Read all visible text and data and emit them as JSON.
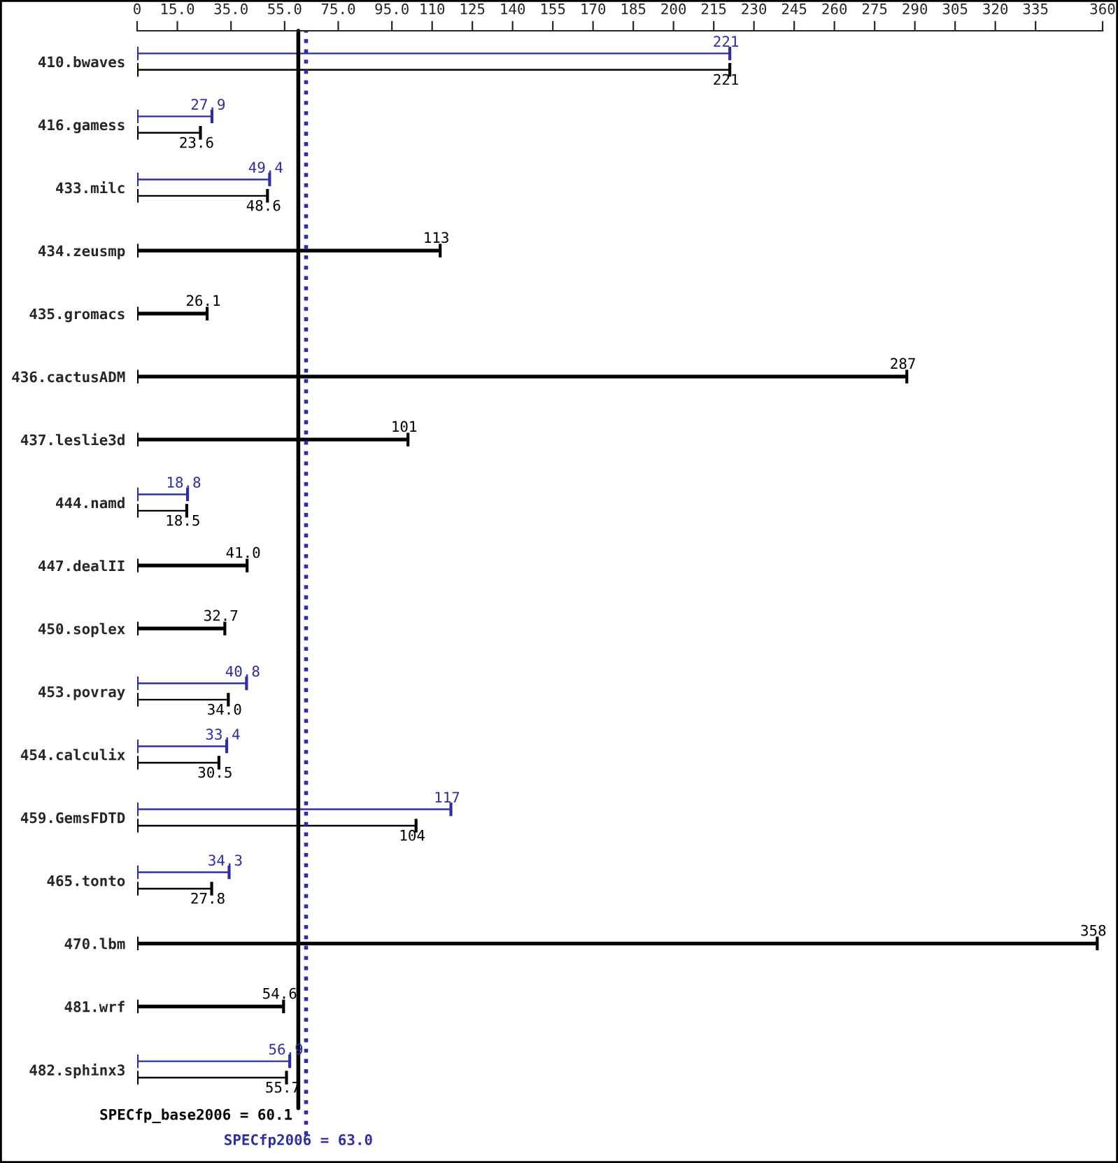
{
  "chart_data": {
    "type": "bar",
    "orientation": "horizontal",
    "categories": [
      "410.bwaves",
      "416.gamess",
      "433.milc",
      "434.zeusmp",
      "435.gromacs",
      "436.cactusADM",
      "437.leslie3d",
      "444.namd",
      "447.dealII",
      "450.soplex",
      "453.povray",
      "454.calculix",
      "459.GemsFDTD",
      "465.tonto",
      "470.lbm",
      "481.wrf",
      "482.sphinx3"
    ],
    "series": [
      {
        "color": "#2d2da8",
        "values": [
          221,
          27.9,
          49.4,
          null,
          null,
          null,
          null,
          18.8,
          null,
          null,
          40.8,
          33.4,
          117,
          34.3,
          null,
          null,
          56.9
        ],
        "value_labels": [
          "221",
          "27.9",
          "49.4",
          null,
          null,
          null,
          null,
          "18.8",
          null,
          null,
          "40.8",
          "33.4",
          "117",
          "34.3",
          null,
          null,
          "56.9"
        ]
      },
      {
        "color": "#000000",
        "values": [
          221,
          23.6,
          48.6,
          113,
          26.1,
          287,
          101,
          18.5,
          41.0,
          32.7,
          34.0,
          30.5,
          104,
          27.8,
          358,
          54.6,
          55.7
        ],
        "value_labels": [
          "221",
          "23.6",
          "48.6",
          "113",
          "26.1",
          "287",
          "101",
          "18.5",
          "41.0",
          "32.7",
          "34.0",
          "30.5",
          "104",
          "27.8",
          "358",
          "54.6",
          "55.7"
        ]
      }
    ],
    "xlim": [
      0,
      360
    ],
    "xticks": [
      0,
      {
        "value": 15,
        "label": "15.0"
      },
      {
        "value": 35,
        "label": "35.0"
      },
      {
        "value": 55,
        "label": "55.0"
      },
      {
        "value": 75,
        "label": "75.0"
      },
      {
        "value": 95,
        "label": "95.0"
      },
      110,
      125,
      140,
      155,
      170,
      185,
      200,
      215,
      230,
      245,
      260,
      275,
      290,
      305,
      320,
      335,
      360
    ],
    "ref_lines": [
      {
        "axis": "x",
        "value": 60.1,
        "label": "SPECfp_base2006 = 60.1",
        "color": "#000000",
        "line_style": "solid"
      },
      {
        "axis": "x",
        "value": 63.0,
        "label": "SPECfp2006 = 63.0",
        "color": "#2d2da8",
        "line_style": "dotted"
      }
    ],
    "grid": false,
    "legend": false
  }
}
